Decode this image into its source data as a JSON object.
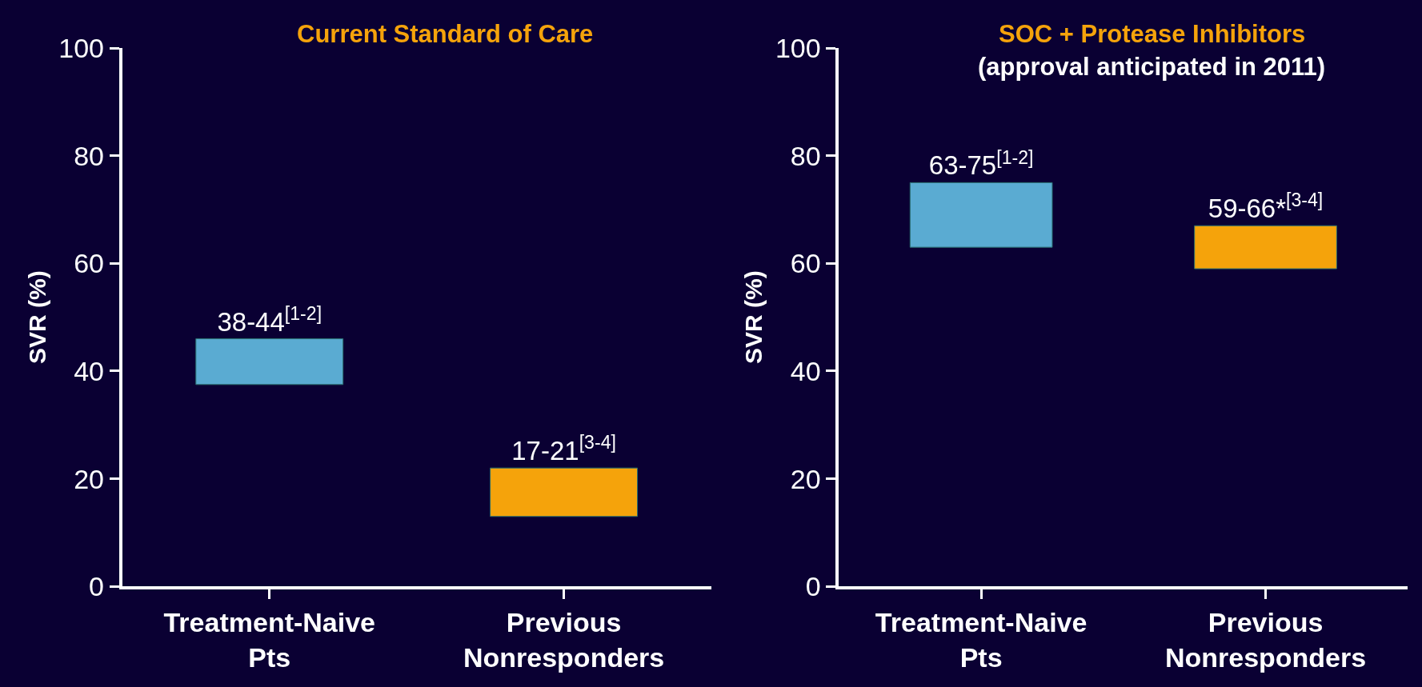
{
  "chart_data": [
    {
      "type": "bar",
      "title": "Current Standard of Care",
      "ylabel": "SVR (%)",
      "categories": [
        "Treatment-Naive\nPts",
        "Previous\nNonresponders"
      ],
      "base": [
        37.5,
        13
      ],
      "values": [
        8.5,
        9
      ],
      "colors": [
        "#5aabd2",
        "#f5a30b"
      ],
      "value_labels": [
        "38-44$^{[1-2]}$",
        "17-21$^{[3-4]}$"
      ],
      "ylim": [
        0,
        100
      ],
      "yticks": [
        0,
        20,
        40,
        60,
        80,
        100
      ]
    },
    {
      "type": "bar",
      "title": "SOC + Protease Inhibitors",
      "subtitle": "(approval anticipated in 2011)",
      "ylabel": "SVR (%)",
      "categories": [
        "Treatment-Naive\nPts",
        "Previous\nNonresponders"
      ],
      "base": [
        63,
        59
      ],
      "values": [
        12,
        8
      ],
      "colors": [
        "#5aabd2",
        "#f5a30b"
      ],
      "value_labels": [
        "63-75$^{[1-2]}$",
        "59-66*$^{[3-4]}$"
      ],
      "ylim": [
        0,
        100
      ],
      "yticks": [
        0,
        20,
        40,
        60,
        80,
        100
      ]
    }
  ]
}
